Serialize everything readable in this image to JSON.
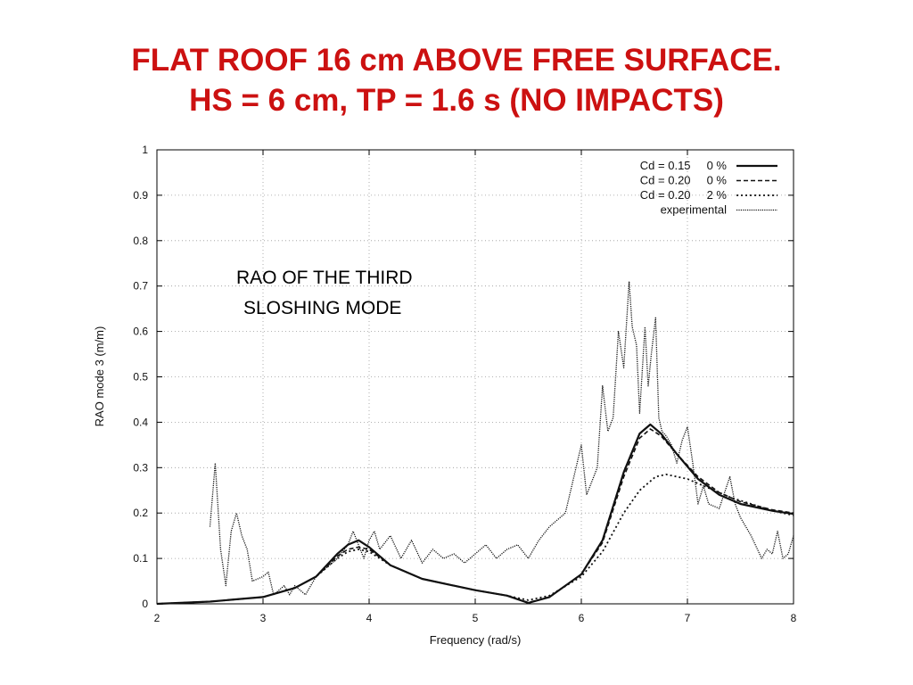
{
  "slide": {
    "title_line1": "FLAT ROOF 16 cm ABOVE FREE SURFACE.",
    "title_line2": "HS = 6 cm, TP = 1.6 s   (NO IMPACTS)",
    "title_color": "#cc1111"
  },
  "chart_data": {
    "type": "line",
    "xlabel": "Frequency  (rad/s)",
    "ylabel": "RAO mode 3  (m/m)",
    "xlim": [
      2,
      8
    ],
    "ylim": [
      0,
      1
    ],
    "xticks": [
      "2",
      "3",
      "4",
      "5",
      "6",
      "7",
      "8"
    ],
    "yticks": [
      "0",
      "0.1",
      "0.2",
      "0.3",
      "0.4",
      "0.5",
      "0.6",
      "0.7",
      "0.8",
      "0.9",
      "1"
    ],
    "grid": true,
    "legend_position": "top-right",
    "annotation_line1": "RAO OF THE THIRD",
    "annotation_line2": "SLOSHING MODE",
    "series": [
      {
        "name": "Cd = 0.15     0 %",
        "style": "solid",
        "x": [
          2.0,
          2.5,
          3.0,
          3.3,
          3.5,
          3.7,
          3.8,
          3.9,
          4.0,
          4.2,
          4.5,
          5.0,
          5.3,
          5.5,
          5.7,
          6.0,
          6.2,
          6.4,
          6.55,
          6.65,
          6.75,
          6.9,
          7.1,
          7.3,
          7.5,
          7.8,
          8.0
        ],
        "y": [
          0.0,
          0.005,
          0.015,
          0.035,
          0.06,
          0.11,
          0.13,
          0.14,
          0.125,
          0.085,
          0.055,
          0.03,
          0.018,
          0.002,
          0.015,
          0.065,
          0.14,
          0.29,
          0.375,
          0.395,
          0.375,
          0.33,
          0.275,
          0.24,
          0.22,
          0.205,
          0.198
        ]
      },
      {
        "name": "Cd = 0.20     0 %",
        "style": "dashed",
        "x": [
          2.0,
          2.5,
          3.0,
          3.3,
          3.5,
          3.7,
          3.8,
          3.9,
          4.0,
          4.2,
          4.5,
          5.0,
          5.3,
          5.5,
          5.7,
          6.0,
          6.2,
          6.4,
          6.55,
          6.65,
          6.75,
          6.9,
          7.1,
          7.3,
          7.5,
          7.8,
          8.0
        ],
        "y": [
          0.0,
          0.005,
          0.015,
          0.035,
          0.06,
          0.105,
          0.12,
          0.125,
          0.12,
          0.085,
          0.055,
          0.03,
          0.018,
          0.003,
          0.015,
          0.065,
          0.135,
          0.28,
          0.365,
          0.385,
          0.37,
          0.33,
          0.28,
          0.245,
          0.225,
          0.207,
          0.2
        ]
      },
      {
        "name": "Cd = 0.20     2 %",
        "style": "dotted",
        "x": [
          2.0,
          2.5,
          3.0,
          3.3,
          3.5,
          3.7,
          3.8,
          3.9,
          4.0,
          4.2,
          4.5,
          5.0,
          5.3,
          5.5,
          5.7,
          6.0,
          6.2,
          6.4,
          6.55,
          6.7,
          6.8,
          7.0,
          7.2,
          7.4,
          7.6,
          7.8,
          8.0
        ],
        "y": [
          0.0,
          0.005,
          0.015,
          0.035,
          0.06,
          0.1,
          0.115,
          0.12,
          0.115,
          0.085,
          0.055,
          0.03,
          0.018,
          0.008,
          0.018,
          0.06,
          0.115,
          0.2,
          0.25,
          0.28,
          0.285,
          0.275,
          0.255,
          0.235,
          0.22,
          0.205,
          0.195
        ]
      },
      {
        "name": "experimental",
        "style": "fine-dotted",
        "x": [
          2.5,
          2.55,
          2.6,
          2.65,
          2.7,
          2.75,
          2.8,
          2.85,
          2.9,
          3.0,
          3.05,
          3.1,
          3.15,
          3.2,
          3.25,
          3.3,
          3.4,
          3.5,
          3.6,
          3.7,
          3.8,
          3.85,
          3.9,
          3.95,
          4.0,
          4.05,
          4.1,
          4.2,
          4.3,
          4.4,
          4.5,
          4.6,
          4.7,
          4.8,
          4.9,
          5.0,
          5.1,
          5.2,
          5.3,
          5.4,
          5.5,
          5.6,
          5.7,
          5.8,
          5.85,
          5.9,
          6.0,
          6.05,
          6.1,
          6.15,
          6.2,
          6.25,
          6.3,
          6.35,
          6.4,
          6.45,
          6.48,
          6.52,
          6.55,
          6.6,
          6.63,
          6.66,
          6.7,
          6.73,
          6.76,
          6.8,
          6.85,
          6.9,
          6.95,
          7.0,
          7.05,
          7.1,
          7.15,
          7.2,
          7.3,
          7.4,
          7.45,
          7.5,
          7.6,
          7.7,
          7.75,
          7.8,
          7.85,
          7.9,
          7.95,
          8.0
        ],
        "y": [
          0.17,
          0.31,
          0.12,
          0.04,
          0.16,
          0.2,
          0.15,
          0.12,
          0.05,
          0.06,
          0.07,
          0.02,
          0.03,
          0.04,
          0.02,
          0.04,
          0.02,
          0.06,
          0.08,
          0.1,
          0.13,
          0.16,
          0.13,
          0.1,
          0.14,
          0.16,
          0.12,
          0.15,
          0.1,
          0.14,
          0.09,
          0.12,
          0.1,
          0.11,
          0.09,
          0.11,
          0.13,
          0.1,
          0.12,
          0.13,
          0.1,
          0.14,
          0.17,
          0.19,
          0.2,
          0.25,
          0.35,
          0.24,
          0.27,
          0.3,
          0.48,
          0.38,
          0.41,
          0.6,
          0.52,
          0.71,
          0.61,
          0.57,
          0.42,
          0.61,
          0.48,
          0.55,
          0.63,
          0.41,
          0.38,
          0.37,
          0.35,
          0.31,
          0.36,
          0.39,
          0.31,
          0.22,
          0.26,
          0.22,
          0.21,
          0.28,
          0.22,
          0.19,
          0.15,
          0.1,
          0.12,
          0.11,
          0.16,
          0.1,
          0.11,
          0.15
        ]
      }
    ]
  }
}
